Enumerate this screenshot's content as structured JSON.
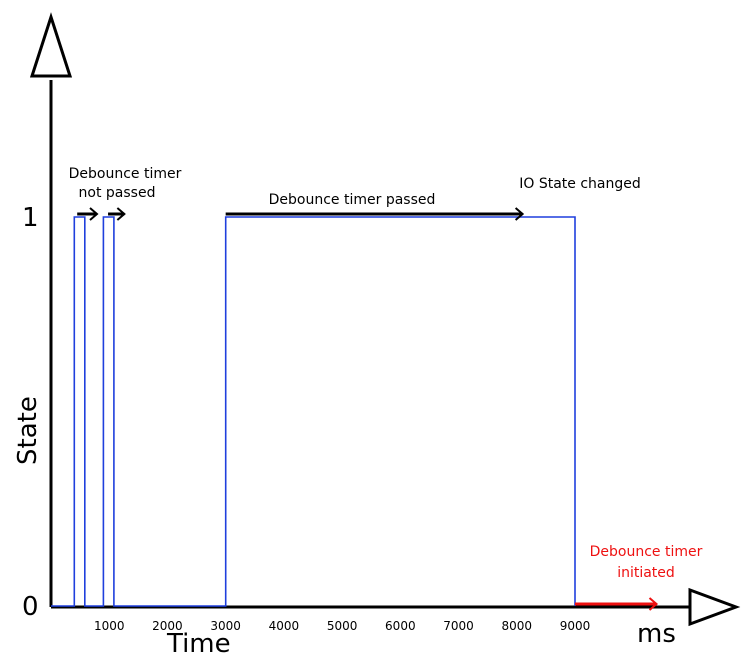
{
  "chart_data": {
    "type": "line",
    "title": "",
    "xlabel": "Time",
    "ylabel": "State",
    "x_unit_label": "ms",
    "xlim": [
      0,
      9000
    ],
    "ylim": [
      0,
      1
    ],
    "x_ticks": [
      1000,
      2000,
      3000,
      4000,
      5000,
      6000,
      7000,
      8000,
      9000
    ],
    "y_ticks": [
      {
        "value": 0,
        "label": "0"
      },
      {
        "value": 1,
        "label": "1"
      }
    ],
    "series": [
      {
        "color": "#1f3fdd",
        "points": [
          [
            0,
            0
          ],
          [
            400,
            0
          ],
          [
            400,
            1
          ],
          [
            580,
            1
          ],
          [
            580,
            0
          ],
          [
            900,
            0
          ],
          [
            900,
            1
          ],
          [
            1080,
            1
          ],
          [
            1080,
            0
          ],
          [
            3000,
            0
          ],
          [
            3000,
            1
          ],
          [
            9000,
            1
          ],
          [
            9000,
            0
          ]
        ]
      }
    ],
    "annotations": [
      {
        "text_lines": [
          "Debounce timer",
          "not passed"
        ],
        "color": "#000000",
        "arrows_from_to": [
          [
            450,
            790
          ],
          [
            980,
            1260
          ]
        ]
      },
      {
        "text_lines": [
          "Debounce timer passed"
        ],
        "color": "#000000",
        "arrows_from_to": [
          [
            3000,
            8100
          ]
        ]
      },
      {
        "text_lines": [
          "IO State changed"
        ],
        "color": "#000000",
        "arrows_from_to": []
      },
      {
        "text_lines": [
          "Debounce timer",
          "initiated"
        ],
        "color": "#ee1111",
        "arrows_from_to": [
          [
            9000,
            10400
          ]
        ]
      }
    ]
  }
}
